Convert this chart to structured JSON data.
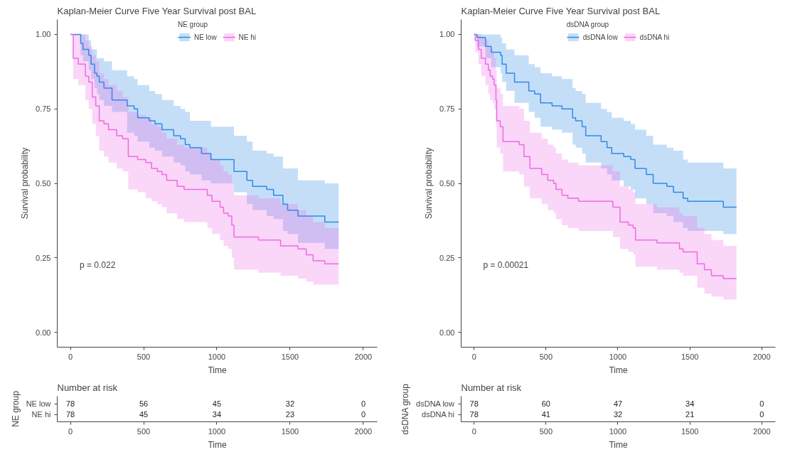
{
  "chart_data": [
    {
      "type": "step",
      "title": "Kaplan-Meier Curve Five Year Survival post BAL",
      "xlabel": "Time",
      "ylabel": "Survival probability",
      "legend_title": "NE group",
      "legend": "top",
      "grid": false,
      "xlim": [
        -90,
        2095
      ],
      "xticks": [
        0,
        500,
        1000,
        1500,
        2000
      ],
      "ylim": [
        -0.05,
        1.05
      ],
      "yticks": [
        {
          "value": 0,
          "label": "0.00"
        },
        {
          "value": 0.25,
          "label": "0.25"
        },
        {
          "value": 0.5,
          "label": "0.50"
        },
        {
          "value": 0.75,
          "label": "0.75"
        },
        {
          "value": 1,
          "label": "1.00"
        }
      ],
      "annotations": [
        "p = 0.022"
      ],
      "series": [
        {
          "name": "NE low",
          "color": "#2f8ae5",
          "x": [
            0,
            70,
            86,
            125,
            141,
            165,
            181,
            197,
            229,
            284,
            387,
            435,
            459,
            538,
            578,
            625,
            705,
            752,
            784,
            816,
            895,
            959,
            1117,
            1205,
            1244,
            1340,
            1387,
            1451,
            1483,
            1554,
            1737,
            1832
          ],
          "values": [
            1,
            0.97,
            0.95,
            0.93,
            0.9,
            0.87,
            0.86,
            0.84,
            0.82,
            0.78,
            0.76,
            0.75,
            0.72,
            0.71,
            0.7,
            0.68,
            0.66,
            0.65,
            0.63,
            0.62,
            0.6,
            0.58,
            0.54,
            0.51,
            0.49,
            0.48,
            0.46,
            0.43,
            0.41,
            0.39,
            0.37,
            0.37
          ],
          "upper": [
            1,
            1,
            1,
            0.98,
            0.95,
            0.95,
            0.92,
            0.92,
            0.91,
            0.88,
            0.86,
            0.85,
            0.83,
            0.81,
            0.8,
            0.78,
            0.76,
            0.75,
            0.74,
            0.71,
            0.71,
            0.69,
            0.66,
            0.64,
            0.61,
            0.6,
            0.59,
            0.55,
            0.55,
            0.51,
            0.5,
            0.5
          ],
          "lower": [
            1,
            0.93,
            0.91,
            0.88,
            0.85,
            0.82,
            0.8,
            0.78,
            0.76,
            0.74,
            0.67,
            0.66,
            0.64,
            0.62,
            0.61,
            0.59,
            0.57,
            0.56,
            0.54,
            0.53,
            0.51,
            0.5,
            0.47,
            0.43,
            0.41,
            0.39,
            0.38,
            0.34,
            0.33,
            0.3,
            0.28,
            0.28
          ]
        },
        {
          "name": "NE hi",
          "color": "#ee6ae6",
          "x": [
            0,
            19,
            54,
            102,
            125,
            149,
            173,
            197,
            229,
            260,
            316,
            356,
            395,
            459,
            514,
            554,
            594,
            625,
            657,
            729,
            776,
            935,
            967,
            1022,
            1046,
            1078,
            1102,
            1117,
            1284,
            1435,
            1554,
            1610,
            1657,
            1737,
            1832
          ],
          "values": [
            1,
            0.92,
            0.9,
            0.86,
            0.84,
            0.79,
            0.76,
            0.71,
            0.7,
            0.68,
            0.66,
            0.65,
            0.59,
            0.58,
            0.57,
            0.55,
            0.54,
            0.53,
            0.51,
            0.49,
            0.48,
            0.46,
            0.44,
            0.42,
            0.4,
            0.39,
            0.36,
            0.32,
            0.31,
            0.29,
            0.28,
            0.26,
            0.24,
            0.23,
            0.23
          ],
          "upper": [
            1,
            1,
            1,
            0.98,
            0.96,
            0.93,
            0.91,
            0.87,
            0.85,
            0.83,
            0.81,
            0.79,
            0.74,
            0.73,
            0.72,
            0.7,
            0.69,
            0.67,
            0.65,
            0.63,
            0.62,
            0.6,
            0.58,
            0.56,
            0.54,
            0.53,
            0.5,
            0.46,
            0.45,
            0.43,
            0.41,
            0.39,
            0.37,
            0.35,
            0.35
          ],
          "lower": [
            1,
            0.85,
            0.83,
            0.78,
            0.75,
            0.7,
            0.66,
            0.61,
            0.59,
            0.57,
            0.55,
            0.54,
            0.48,
            0.47,
            0.45,
            0.44,
            0.43,
            0.42,
            0.4,
            0.38,
            0.37,
            0.35,
            0.33,
            0.31,
            0.29,
            0.28,
            0.25,
            0.21,
            0.2,
            0.19,
            0.18,
            0.17,
            0.16,
            0.16,
            0.16
          ]
        }
      ]
    },
    {
      "type": "heatmap",
      "title": "Number at risk",
      "xlabel": "Time",
      "ylabel": "NE group",
      "categories": [
        "0",
        "500",
        "1000",
        "1500",
        "2000"
      ],
      "y_categories": [
        "NE low",
        "NE hi"
      ],
      "cells": [
        [
          78,
          56,
          45,
          32,
          0
        ],
        [
          78,
          45,
          34,
          23,
          0
        ]
      ],
      "data_labels": true
    },
    {
      "type": "step",
      "title": "Kaplan-Meier Curve Five Year Survival post BAL",
      "xlabel": "Time",
      "ylabel": "Survival probability",
      "legend_title": "dsDNA group",
      "legend": "top",
      "grid": false,
      "xlim": [
        -90,
        2095
      ],
      "xticks": [
        0,
        500,
        1000,
        1500,
        2000
      ],
      "ylim": [
        -0.05,
        1.05
      ],
      "yticks": [
        {
          "value": 0,
          "label": "0.00"
        },
        {
          "value": 0.25,
          "label": "0.25"
        },
        {
          "value": 0.5,
          "label": "0.50"
        },
        {
          "value": 0.75,
          "label": "0.75"
        },
        {
          "value": 1,
          "label": "1.00"
        }
      ],
      "annotations": [
        "p = 0.00021"
      ],
      "series": [
        {
          "name": "dsDNA low",
          "color": "#2f8ae5",
          "x": [
            0,
            20,
            79,
            119,
            185,
            195,
            223,
            281,
            380,
            421,
            462,
            542,
            611,
            685,
            706,
            751,
            776,
            883,
            924,
            957,
            1040,
            1089,
            1119,
            1197,
            1245,
            1340,
            1386,
            1453,
            1485,
            1733,
            1824
          ],
          "values": [
            1,
            0.99,
            0.96,
            0.94,
            0.93,
            0.9,
            0.87,
            0.84,
            0.81,
            0.8,
            0.77,
            0.76,
            0.75,
            0.72,
            0.71,
            0.69,
            0.66,
            0.64,
            0.62,
            0.6,
            0.59,
            0.58,
            0.55,
            0.53,
            0.5,
            0.49,
            0.47,
            0.45,
            0.44,
            0.42,
            0.42
          ],
          "upper": [
            1,
            1,
            1,
            1,
            0.99,
            0.97,
            0.95,
            0.93,
            0.9,
            0.89,
            0.87,
            0.86,
            0.85,
            0.82,
            0.81,
            0.8,
            0.77,
            0.75,
            0.74,
            0.72,
            0.71,
            0.7,
            0.68,
            0.66,
            0.63,
            0.62,
            0.61,
            0.58,
            0.57,
            0.55,
            0.55
          ],
          "lower": [
            1,
            0.96,
            0.92,
            0.89,
            0.87,
            0.84,
            0.81,
            0.77,
            0.74,
            0.72,
            0.69,
            0.68,
            0.67,
            0.63,
            0.62,
            0.6,
            0.57,
            0.55,
            0.53,
            0.51,
            0.49,
            0.48,
            0.45,
            0.43,
            0.4,
            0.39,
            0.37,
            0.35,
            0.34,
            0.33,
            0.33
          ]
        },
        {
          "name": "dsDNA hi",
          "color": "#ee6ae6",
          "x": [
            0,
            8,
            30,
            50,
            79,
            99,
            112,
            129,
            140,
            152,
            157,
            182,
            201,
            314,
            347,
            388,
            470,
            512,
            553,
            569,
            611,
            652,
            726,
            965,
            1015,
            1073,
            1106,
            1122,
            1271,
            1428,
            1453,
            1551,
            1601,
            1650,
            1733,
            1824
          ],
          "values": [
            1,
            0.98,
            0.95,
            0.92,
            0.9,
            0.88,
            0.86,
            0.85,
            0.83,
            0.78,
            0.71,
            0.69,
            0.64,
            0.63,
            0.59,
            0.55,
            0.53,
            0.51,
            0.5,
            0.48,
            0.46,
            0.45,
            0.44,
            0.42,
            0.37,
            0.36,
            0.35,
            0.31,
            0.3,
            0.28,
            0.27,
            0.23,
            0.21,
            0.19,
            0.18,
            0.18
          ],
          "upper": [
            1,
            1,
            1,
            0.99,
            0.98,
            0.96,
            0.95,
            0.94,
            0.92,
            0.88,
            0.82,
            0.8,
            0.76,
            0.75,
            0.71,
            0.67,
            0.65,
            0.63,
            0.62,
            0.6,
            0.58,
            0.57,
            0.56,
            0.54,
            0.49,
            0.48,
            0.47,
            0.43,
            0.42,
            0.4,
            0.39,
            0.35,
            0.33,
            0.31,
            0.29,
            0.29
          ],
          "lower": [
            1,
            0.94,
            0.9,
            0.86,
            0.83,
            0.8,
            0.78,
            0.77,
            0.75,
            0.69,
            0.62,
            0.6,
            0.54,
            0.53,
            0.49,
            0.45,
            0.43,
            0.41,
            0.4,
            0.38,
            0.36,
            0.35,
            0.34,
            0.32,
            0.28,
            0.27,
            0.26,
            0.22,
            0.21,
            0.2,
            0.19,
            0.15,
            0.13,
            0.12,
            0.11,
            0.11
          ]
        }
      ]
    },
    {
      "type": "heatmap",
      "title": "Number at risk",
      "xlabel": "Time",
      "ylabel": "dsDNA group",
      "categories": [
        "0",
        "500",
        "1000",
        "1500",
        "2000"
      ],
      "y_categories": [
        "dsDNA low",
        "dsDNA hi"
      ],
      "cells": [
        [
          78,
          60,
          47,
          34,
          0
        ],
        [
          78,
          41,
          32,
          21,
          0
        ]
      ],
      "data_labels": true
    }
  ]
}
